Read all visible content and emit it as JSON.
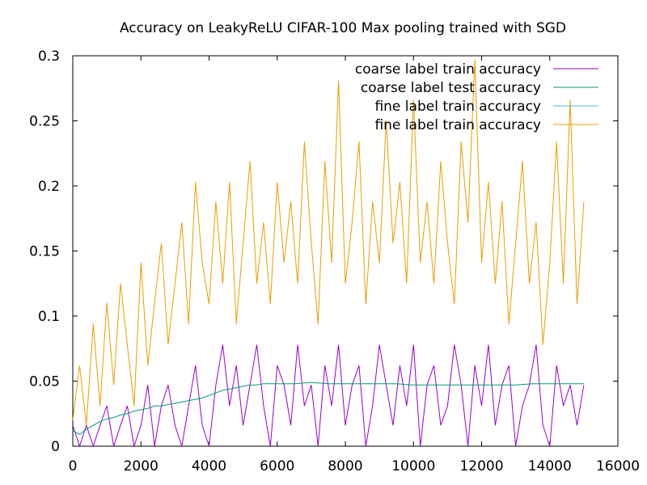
{
  "chart_data": {
    "type": "line",
    "title": "Accuracy on LeakyReLU CIFAR-100 Max pooling trained with SGD",
    "xlabel": "",
    "ylabel": "",
    "xlim": [
      0,
      16000
    ],
    "ylim": [
      0,
      0.3
    ],
    "xticks": [
      0,
      2000,
      4000,
      6000,
      8000,
      10000,
      12000,
      14000,
      16000
    ],
    "yticks": [
      0,
      0.05,
      0.1,
      0.15,
      0.2,
      0.25,
      0.3
    ],
    "xtick_labels": [
      "0",
      "2000",
      "4000",
      "6000",
      "8000",
      "10000",
      "12000",
      "14000",
      "16000"
    ],
    "ytick_labels": [
      "0",
      "0.05",
      "0.1",
      "0.15",
      "0.2",
      "0.25",
      "0.3"
    ],
    "grid": false,
    "legend_position": "top-right",
    "series": [
      {
        "name": "coarse label train accuracy",
        "color": "#9400d3",
        "x": [
          0,
          200,
          400,
          600,
          800,
          1000,
          1200,
          1400,
          1600,
          1800,
          2000,
          2200,
          2400,
          2600,
          2800,
          3000,
          3200,
          3400,
          3600,
          3800,
          4000,
          4200,
          4400,
          4600,
          4800,
          5000,
          5200,
          5400,
          5600,
          5800,
          6000,
          6200,
          6400,
          6600,
          6800,
          7000,
          7200,
          7400,
          7600,
          7800,
          8000,
          8200,
          8400,
          8600,
          8800,
          9000,
          9200,
          9400,
          9600,
          9800,
          10000,
          10200,
          10400,
          10600,
          10800,
          11000,
          11200,
          11400,
          11600,
          11800,
          12000,
          12200,
          12400,
          12600,
          12800,
          13000,
          13200,
          13400,
          13600,
          13800,
          14000,
          14200,
          14400,
          14600,
          14800,
          15000
        ],
        "y": [
          0.016,
          0.0,
          0.016,
          0.0,
          0.016,
          0.031,
          0.0,
          0.016,
          0.031,
          0.0,
          0.016,
          0.047,
          0.0,
          0.031,
          0.047,
          0.016,
          0.0,
          0.031,
          0.062,
          0.016,
          0.0,
          0.047,
          0.078,
          0.031,
          0.062,
          0.016,
          0.047,
          0.078,
          0.031,
          0.0,
          0.062,
          0.047,
          0.016,
          0.078,
          0.031,
          0.047,
          0.0,
          0.062,
          0.031,
          0.078,
          0.016,
          0.047,
          0.062,
          0.0,
          0.031,
          0.078,
          0.047,
          0.016,
          0.062,
          0.031,
          0.078,
          0.0,
          0.047,
          0.062,
          0.016,
          0.031,
          0.078,
          0.047,
          0.0,
          0.062,
          0.031,
          0.078,
          0.016,
          0.047,
          0.062,
          0.0,
          0.031,
          0.047,
          0.078,
          0.016,
          0.0,
          0.062,
          0.031,
          0.047,
          0.016,
          0.047
        ]
      },
      {
        "name": "coarse label test accuracy",
        "color": "#009e73",
        "x": [
          0,
          200,
          400,
          600,
          800,
          1000,
          1200,
          1400,
          1600,
          1800,
          2000,
          2200,
          2400,
          2600,
          2800,
          3000,
          3200,
          3400,
          3600,
          3800,
          4000,
          4200,
          4400,
          4600,
          4800,
          5000,
          5200,
          5400,
          5600,
          5800,
          6000,
          6500,
          7000,
          7500,
          8000,
          8500,
          9000,
          9500,
          10000,
          10500,
          11000,
          11500,
          12000,
          12500,
          13000,
          13500,
          14000,
          14500,
          15000
        ],
        "y": [
          0.012,
          0.009,
          0.013,
          0.016,
          0.019,
          0.021,
          0.022,
          0.024,
          0.025,
          0.027,
          0.028,
          0.029,
          0.031,
          0.031,
          0.032,
          0.033,
          0.034,
          0.035,
          0.036,
          0.037,
          0.039,
          0.041,
          0.043,
          0.044,
          0.045,
          0.046,
          0.047,
          0.047,
          0.048,
          0.048,
          0.048,
          0.048,
          0.049,
          0.048,
          0.048,
          0.048,
          0.048,
          0.048,
          0.047,
          0.047,
          0.047,
          0.047,
          0.047,
          0.047,
          0.047,
          0.048,
          0.048,
          0.048,
          0.048
        ]
      },
      {
        "name": "fine label train accuracy",
        "color": "#56b4e9",
        "x": [],
        "y": []
      },
      {
        "name": "fine label train accuracy",
        "color": "#e69f00",
        "x": [
          0,
          200,
          400,
          600,
          800,
          1000,
          1200,
          1400,
          1600,
          1800,
          2000,
          2200,
          2400,
          2600,
          2800,
          3000,
          3200,
          3400,
          3600,
          3800,
          4000,
          4200,
          4400,
          4600,
          4800,
          5000,
          5200,
          5400,
          5600,
          5800,
          6000,
          6200,
          6400,
          6600,
          6800,
          7000,
          7200,
          7400,
          7600,
          7800,
          8000,
          8200,
          8400,
          8600,
          8800,
          9000,
          9200,
          9400,
          9600,
          9800,
          10000,
          10200,
          10400,
          10600,
          10800,
          11000,
          11200,
          11400,
          11600,
          11800,
          12000,
          12200,
          12400,
          12600,
          12800,
          13000,
          13200,
          13400,
          13600,
          13800,
          14000,
          14200,
          14400,
          14600,
          14800,
          15000
        ],
        "y": [
          0.02,
          0.062,
          0.016,
          0.094,
          0.031,
          0.11,
          0.047,
          0.125,
          0.078,
          0.031,
          0.141,
          0.062,
          0.11,
          0.156,
          0.078,
          0.125,
          0.172,
          0.094,
          0.203,
          0.141,
          0.109,
          0.188,
          0.125,
          0.203,
          0.094,
          0.156,
          0.219,
          0.125,
          0.172,
          0.109,
          0.203,
          0.141,
          0.188,
          0.125,
          0.234,
          0.156,
          0.094,
          0.219,
          0.141,
          0.281,
          0.125,
          0.172,
          0.234,
          0.109,
          0.188,
          0.141,
          0.25,
          0.156,
          0.203,
          0.125,
          0.266,
          0.141,
          0.188,
          0.125,
          0.219,
          0.156,
          0.109,
          0.234,
          0.172,
          0.297,
          0.141,
          0.203,
          0.125,
          0.188,
          0.094,
          0.156,
          0.219,
          0.125,
          0.172,
          0.078,
          0.141,
          0.234,
          0.125,
          0.266,
          0.109,
          0.188
        ]
      }
    ]
  }
}
